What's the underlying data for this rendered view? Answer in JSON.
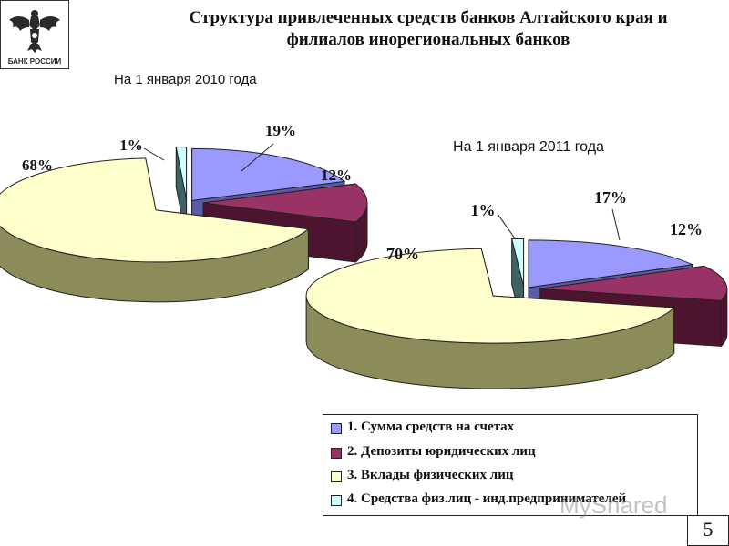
{
  "slide": {
    "logo_text": "БАНК РОССИИ",
    "title_line1": "Структура привлеченных средств банков Алтайского края и",
    "title_line2": "филиалов инорегиональных банков",
    "page_number": "5",
    "watermark": "MyShared"
  },
  "colors": {
    "blue": "#9999ff",
    "maroon": "#993366",
    "cream": "#ffffcc",
    "cyan": "#ccffff"
  },
  "legend": [
    {
      "label": "1. Сумма средств на счетах",
      "color": "#9999ff"
    },
    {
      "label": "2. Депозиты юридических лиц",
      "color": "#993366"
    },
    {
      "label": "3. Вклады физических лиц",
      "color": "#ffffcc"
    },
    {
      "label": "4. Средства физ.лиц - инд.предпринимателей",
      "color": "#ccffff"
    }
  ],
  "chart_data": [
    {
      "type": "pie",
      "title": "На 1 января 2010 года",
      "categories": [
        "1. Сумма средств на счетах",
        "2. Депозиты юридических лиц",
        "3. Вклады физических лиц",
        "4. Средства физ.лиц - инд.предпринимателей"
      ],
      "values": [
        19,
        12,
        68,
        1
      ],
      "labels": [
        "19%",
        "12%",
        "68%",
        "1%"
      ]
    },
    {
      "type": "pie",
      "title": "На 1 января 2011 года",
      "categories": [
        "1. Сумма средств на счетах",
        "2. Депозиты юридических лиц",
        "3. Вклады физических лиц",
        "4. Средства физ.лиц - инд.предпринимателей"
      ],
      "values": [
        17,
        12,
        70,
        1
      ],
      "labels": [
        "17%",
        "12%",
        "70%",
        "1%"
      ]
    }
  ]
}
